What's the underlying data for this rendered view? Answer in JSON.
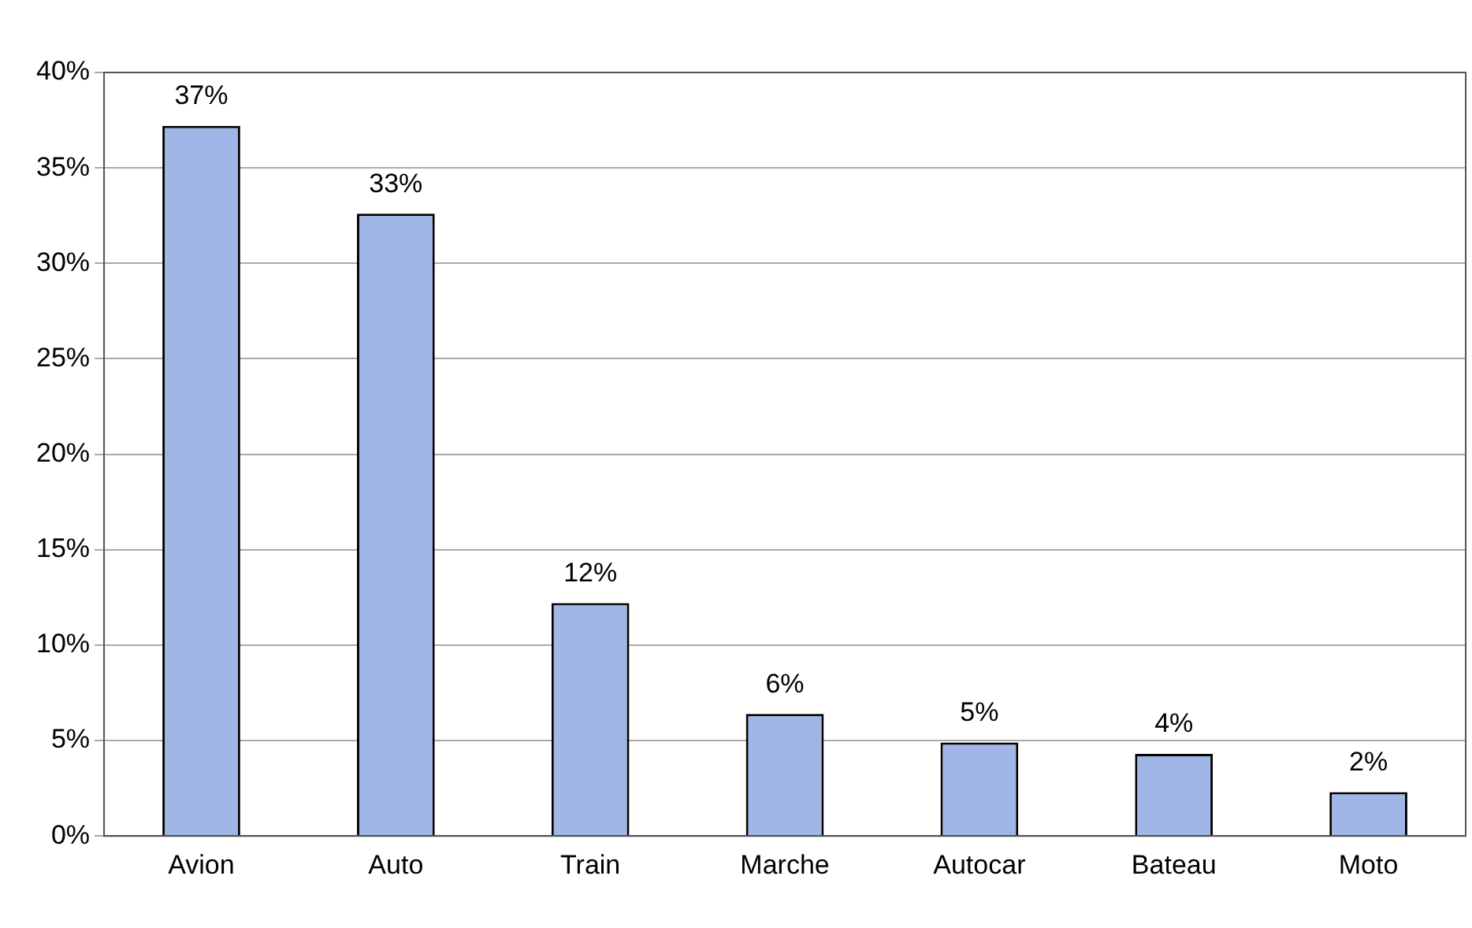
{
  "chart_data": {
    "type": "bar",
    "categories": [
      "Avion",
      "Auto",
      "Train",
      "Marche",
      "Autocar",
      "Bateau",
      "Moto"
    ],
    "values": [
      37.2,
      32.6,
      12.2,
      6.4,
      4.9,
      4.3,
      2.3
    ],
    "value_labels": [
      "37%",
      "33%",
      "12%",
      "6%",
      "5%",
      "4%",
      "2%"
    ],
    "color": "#9fb6e6",
    "ylim": [
      0,
      40
    ],
    "yticks": [
      {
        "value": 0,
        "label": "0%"
      },
      {
        "value": 5,
        "label": "5%"
      },
      {
        "value": 10,
        "label": "10%"
      },
      {
        "value": 15,
        "label": "15%"
      },
      {
        "value": 20,
        "label": "20%"
      },
      {
        "value": 25,
        "label": "25%"
      },
      {
        "value": 30,
        "label": "30%"
      },
      {
        "value": 35,
        "label": "35%"
      },
      {
        "value": 40,
        "label": "40%"
      }
    ],
    "grid": "y"
  }
}
